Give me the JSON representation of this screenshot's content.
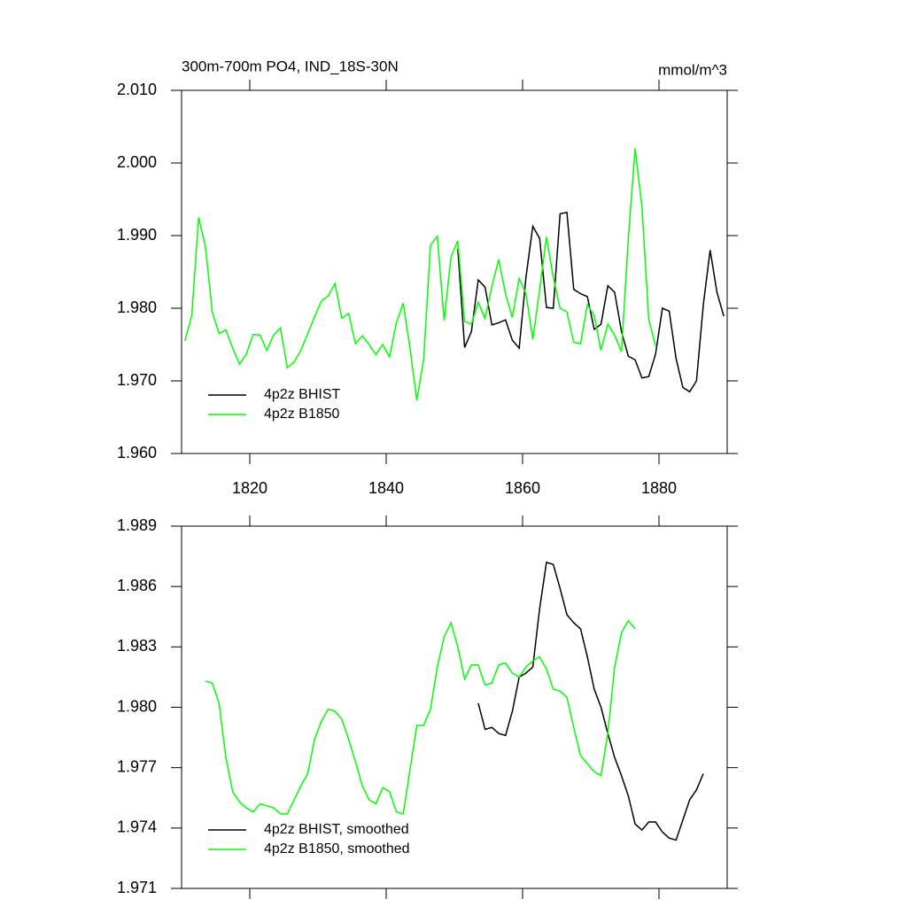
{
  "chart_data": [
    {
      "type": "line",
      "title": "300m-700m PO4, IND_18S-30N",
      "units": "mmol/m^3",
      "xlim": [
        1810,
        1890
      ],
      "xticks": [
        1820,
        1840,
        1860,
        1880
      ],
      "ylim": [
        1.96,
        2.01
      ],
      "yticks": [
        {
          "value": 1.96,
          "label": "1.960"
        },
        {
          "value": 1.97,
          "label": "1.970"
        },
        {
          "value": 1.98,
          "label": "1.980"
        },
        {
          "value": 1.99,
          "label": "1.990"
        },
        {
          "value": 2.0,
          "label": "2.000"
        },
        {
          "value": 2.01,
          "label": "2.010"
        }
      ],
      "legend": "lower left",
      "series": [
        {
          "name": "4p2z BHIST",
          "color": "#000000",
          "x": [
            1850.5,
            1851.5,
            1852.5,
            1853.5,
            1854.5,
            1855.5,
            1856.5,
            1857.5,
            1858.5,
            1859.5,
            1860.5,
            1861.5,
            1862.5,
            1863.5,
            1864.5,
            1865.5,
            1866.5,
            1867.5,
            1868.5,
            1869.5,
            1870.5,
            1871.5,
            1872.5,
            1873.5,
            1874.5,
            1875.5,
            1876.5,
            1877.5,
            1878.5,
            1879.5,
            1880.5,
            1881.5,
            1882.5,
            1883.5,
            1884.5,
            1885.5,
            1886.5,
            1887.5,
            1888.5,
            1889.5
          ],
          "values": [
            1.9882,
            1.9746,
            1.9768,
            1.9839,
            1.9829,
            1.9777,
            1.978,
            1.9784,
            1.9756,
            1.9745,
            1.9843,
            1.9913,
            1.9896,
            1.9801,
            1.98,
            1.993,
            1.9932,
            1.9826,
            1.982,
            1.9816,
            1.9771,
            1.9778,
            1.9831,
            1.9822,
            1.9768,
            1.9734,
            1.9729,
            1.9704,
            1.9706,
            1.9737,
            1.98,
            1.9796,
            1.9731,
            1.9691,
            1.9685,
            1.97,
            1.9805,
            1.988,
            1.9822,
            1.9789
          ]
        },
        {
          "name": "4p2z B1850",
          "color": "#00ff00",
          "x": [
            1810.5,
            1811.5,
            1812.5,
            1813.5,
            1814.5,
            1815.5,
            1816.5,
            1817.5,
            1818.5,
            1819.5,
            1820.5,
            1821.5,
            1822.5,
            1823.5,
            1824.5,
            1825.5,
            1826.5,
            1827.5,
            1828.5,
            1829.5,
            1830.5,
            1831.5,
            1832.5,
            1833.5,
            1834.5,
            1835.5,
            1836.5,
            1837.5,
            1838.5,
            1839.5,
            1840.5,
            1841.5,
            1842.5,
            1843.5,
            1844.5,
            1845.5,
            1846.5,
            1847.5,
            1848.5,
            1849.5,
            1850.5,
            1851.5,
            1852.5,
            1853.5,
            1854.5,
            1855.5,
            1856.5,
            1857.5,
            1858.5,
            1859.5,
            1860.5,
            1861.5,
            1862.5,
            1863.5,
            1864.5,
            1865.5,
            1866.5,
            1867.5,
            1868.5,
            1869.5,
            1870.5,
            1871.5,
            1872.5,
            1873.5,
            1874.5,
            1875.5,
            1876.5,
            1877.5,
            1878.5,
            1879.5
          ],
          "values": [
            1.9755,
            1.979,
            1.9925,
            1.9885,
            1.9795,
            1.9765,
            1.977,
            1.9745,
            1.9723,
            1.9737,
            1.9764,
            1.9763,
            1.9742,
            1.9763,
            1.9773,
            1.9718,
            1.9726,
            1.9742,
            1.9765,
            1.9788,
            1.981,
            1.9817,
            1.9834,
            1.9786,
            1.9793,
            1.9751,
            1.9762,
            1.975,
            1.9736,
            1.975,
            1.9733,
            1.978,
            1.9807,
            1.9745,
            1.9673,
            1.973,
            1.9887,
            1.9899,
            1.9783,
            1.987,
            1.9893,
            1.9782,
            1.9778,
            1.9808,
            1.9786,
            1.983,
            1.9867,
            1.982,
            1.9787,
            1.9841,
            1.982,
            1.9757,
            1.9825,
            1.9898,
            1.9843,
            1.98,
            1.9795,
            1.9753,
            1.9751,
            1.9805,
            1.979,
            1.9742,
            1.9778,
            1.9763,
            1.974,
            1.9895,
            2.002,
            1.994,
            1.9785,
            1.9748
          ]
        }
      ]
    },
    {
      "type": "line",
      "xlim": [
        1810,
        1890
      ],
      "xticks": [
        1820,
        1840,
        1860,
        1880
      ],
      "xtick_labels": false,
      "ylim": [
        1.971,
        1.989
      ],
      "yticks": [
        1.971,
        1.974,
        1.977,
        {
          "value": 1.98,
          "label": "1.980"
        },
        1.983,
        1.986,
        1.989
      ],
      "legend": "lower left",
      "series": [
        {
          "name": "4p2z BHIST, smoothed",
          "color": "#000000",
          "x": [
            1853.5,
            1854.5,
            1855.5,
            1856.5,
            1857.5,
            1858.5,
            1859.5,
            1860.5,
            1861.5,
            1862.5,
            1863.5,
            1864.5,
            1865.5,
            1866.5,
            1867.5,
            1868.5,
            1869.5,
            1870.5,
            1871.5,
            1872.5,
            1873.5,
            1874.5,
            1875.5,
            1876.5,
            1877.5,
            1878.5,
            1879.5,
            1880.5,
            1881.5,
            1882.5,
            1883.5,
            1884.5,
            1885.5,
            1886.5
          ],
          "values": [
            1.9802,
            1.9789,
            1.979,
            1.9787,
            1.9786,
            1.9798,
            1.9815,
            1.9817,
            1.982,
            1.9849,
            1.9872,
            1.9871,
            1.9859,
            1.9846,
            1.9842,
            1.9839,
            1.9825,
            1.9809,
            1.98,
            1.9787,
            1.9775,
            1.9766,
            1.9756,
            1.9742,
            1.9739,
            1.9743,
            1.9743,
            1.9738,
            1.9735,
            1.9734,
            1.9744,
            1.9754,
            1.9759,
            1.9767
          ]
        },
        {
          "name": "4p2z B1850, smoothed",
          "color": "#00ff00",
          "x": [
            1813.5,
            1814.5,
            1815.5,
            1816.5,
            1817.5,
            1818.5,
            1819.5,
            1820.5,
            1821.5,
            1822.5,
            1823.5,
            1824.5,
            1825.5,
            1826.5,
            1827.5,
            1828.5,
            1829.5,
            1830.5,
            1831.5,
            1832.5,
            1833.5,
            1834.5,
            1835.5,
            1836.5,
            1837.5,
            1838.5,
            1839.5,
            1840.5,
            1841.5,
            1842.5,
            1843.5,
            1844.5,
            1845.5,
            1846.5,
            1847.5,
            1848.5,
            1849.5,
            1850.5,
            1851.5,
            1852.5,
            1853.5,
            1854.5,
            1855.5,
            1856.5,
            1857.5,
            1858.5,
            1859.5,
            1860.5,
            1861.5,
            1862.5,
            1863.5,
            1864.5,
            1865.5,
            1866.5,
            1867.5,
            1868.5,
            1869.5,
            1870.5,
            1871.5,
            1872.5,
            1873.5,
            1874.5,
            1875.5,
            1876.5
          ],
          "values": [
            1.9813,
            1.9812,
            1.9802,
            1.9775,
            1.9758,
            1.9753,
            1.975,
            1.9748,
            1.9752,
            1.9751,
            1.975,
            1.9747,
            1.9747,
            1.9754,
            1.9761,
            1.9767,
            1.9784,
            1.9793,
            1.9799,
            1.9798,
            1.9794,
            1.9784,
            1.9773,
            1.9761,
            1.9754,
            1.9752,
            1.976,
            1.9758,
            1.9748,
            1.9747,
            1.9769,
            1.9791,
            1.9791,
            1.9799,
            1.982,
            1.9835,
            1.9842,
            1.983,
            1.9814,
            1.9821,
            1.9821,
            1.9811,
            1.9812,
            1.9821,
            1.9822,
            1.9817,
            1.9815,
            1.982,
            1.9823,
            1.9825,
            1.9819,
            1.9809,
            1.9808,
            1.9805,
            1.979,
            1.9776,
            1.9772,
            1.9768,
            1.9766,
            1.9787,
            1.982,
            1.9837,
            1.9843,
            1.9839
          ]
        }
      ]
    }
  ]
}
